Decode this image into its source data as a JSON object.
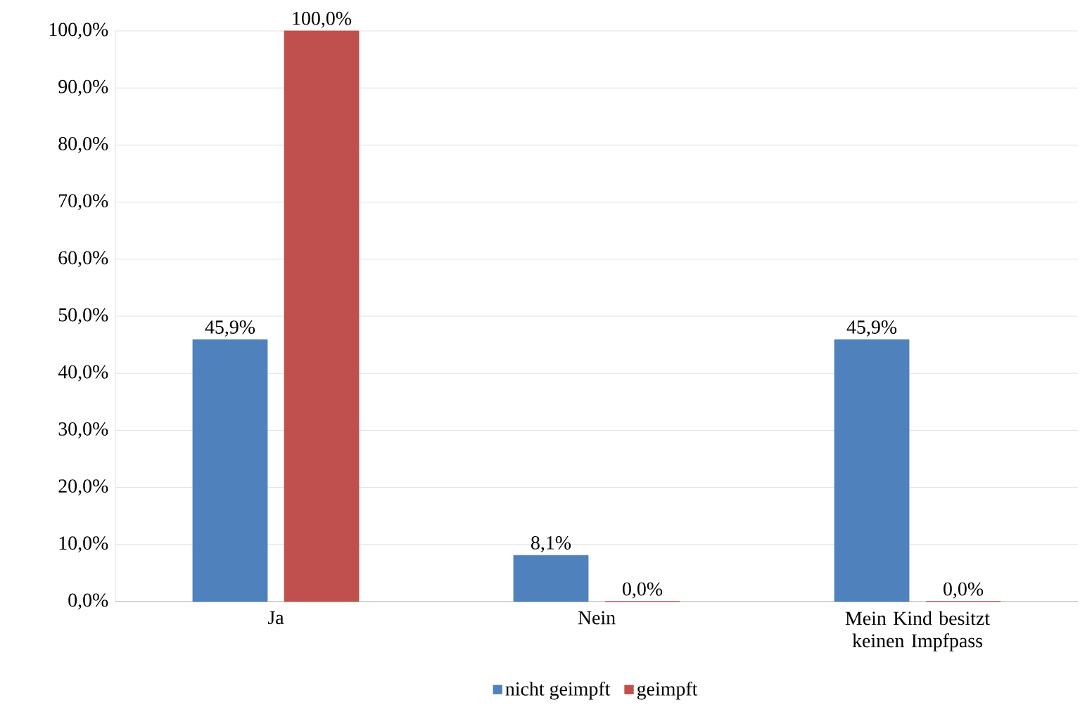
{
  "chart_data": {
    "type": "bar",
    "categories": [
      "Ja",
      "Nein",
      "Mein Kind besitzt keinen Impfpass"
    ],
    "series": [
      {
        "name": "nicht geimpft",
        "color": "#4f81bd",
        "values": [
          45.9,
          8.1,
          45.9
        ],
        "value_labels": [
          "45,9%",
          "8,1%",
          "45,9%"
        ]
      },
      {
        "name": "geimpft",
        "color": "#c0504d",
        "values": [
          100.0,
          0.0,
          0.0
        ],
        "value_labels": [
          "100,0%",
          "0,0%",
          "0,0%"
        ]
      }
    ],
    "ylim": [
      0,
      100
    ],
    "yticks": [
      {
        "value": 0,
        "label": "0,0%"
      },
      {
        "value": 10,
        "label": "10,0%"
      },
      {
        "value": 20,
        "label": "20,0%"
      },
      {
        "value": 30,
        "label": "30,0%"
      },
      {
        "value": 40,
        "label": "40,0%"
      },
      {
        "value": 50,
        "label": "50,0%"
      },
      {
        "value": 60,
        "label": "60,0%"
      },
      {
        "value": 70,
        "label": "70,0%"
      },
      {
        "value": 80,
        "label": "80,0%"
      },
      {
        "value": 90,
        "label": "90,0%"
      },
      {
        "value": 100,
        "label": "100,0%"
      }
    ],
    "grid": "y",
    "legend": "bottom"
  }
}
